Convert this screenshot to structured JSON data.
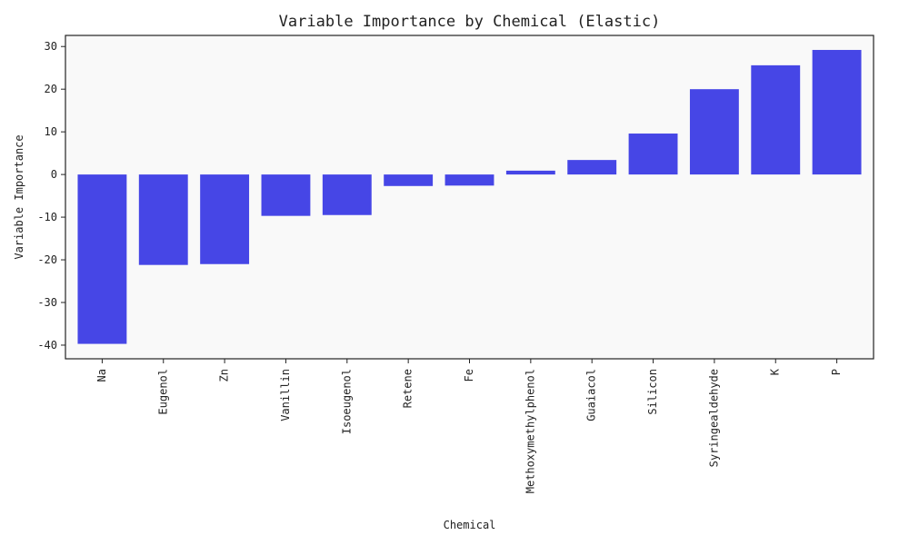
{
  "chart_data": {
    "type": "bar",
    "title": "Variable Importance by Chemical (Elastic)",
    "xlabel": "Chemical",
    "ylabel": "Variable Importance",
    "categories": [
      "Na",
      "Eugenol",
      "Zn",
      "Vanillin",
      "Isoeugenol",
      "Retene",
      "Fe",
      "Methoxymethylphenol",
      "Guaiacol",
      "Silicon",
      "Syringealdehyde",
      "K",
      "P"
    ],
    "values": [
      -39.7,
      -21.2,
      -21.0,
      -9.7,
      -9.5,
      -2.7,
      -2.6,
      0.9,
      3.4,
      9.6,
      20.0,
      25.6,
      29.2
    ],
    "ylim": [
      -43.2,
      32.6
    ],
    "yticks": [
      -40,
      -30,
      -20,
      -10,
      0,
      10,
      20,
      30
    ],
    "bar_color": "#4646e6",
    "plot_background": "#f9f9f9",
    "grid": false,
    "legend": "none"
  }
}
